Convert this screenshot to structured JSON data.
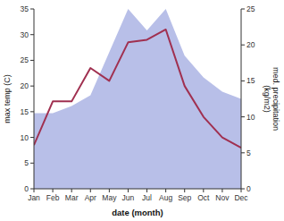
{
  "chart_data": {
    "type": "line",
    "xlabel": "date (month)",
    "ylabel": "max temp (C)",
    "y2label": "med. precipitation\n(kg/m2)",
    "categories": [
      "Jan",
      "Feb",
      "Mar",
      "Apr",
      "May",
      "Jun",
      "Jul",
      "Aug",
      "Sep",
      "Oct",
      "Nov",
      "Dec"
    ],
    "series": [
      {
        "type": "area",
        "axis": "y2",
        "color": "#b8bfe8",
        "values": [
          10.5,
          10.5,
          11.5,
          13.0,
          19.0,
          25.0,
          22.0,
          25.0,
          18.5,
          15.5,
          13.5,
          12.5
        ]
      },
      {
        "type": "line",
        "color": "#a03050",
        "values": [
          8.5,
          17.0,
          17.0,
          23.5,
          21.0,
          28.5,
          29.0,
          31.0,
          20.0,
          14.0,
          10.0,
          8.0
        ]
      }
    ],
    "ylim": [
      0,
      35
    ],
    "yticks": [
      0,
      5,
      10,
      15,
      20,
      25,
      30,
      35
    ],
    "y2lim": [
      0,
      25
    ],
    "y2ticks": [
      0,
      5,
      10,
      15,
      20,
      25
    ]
  }
}
